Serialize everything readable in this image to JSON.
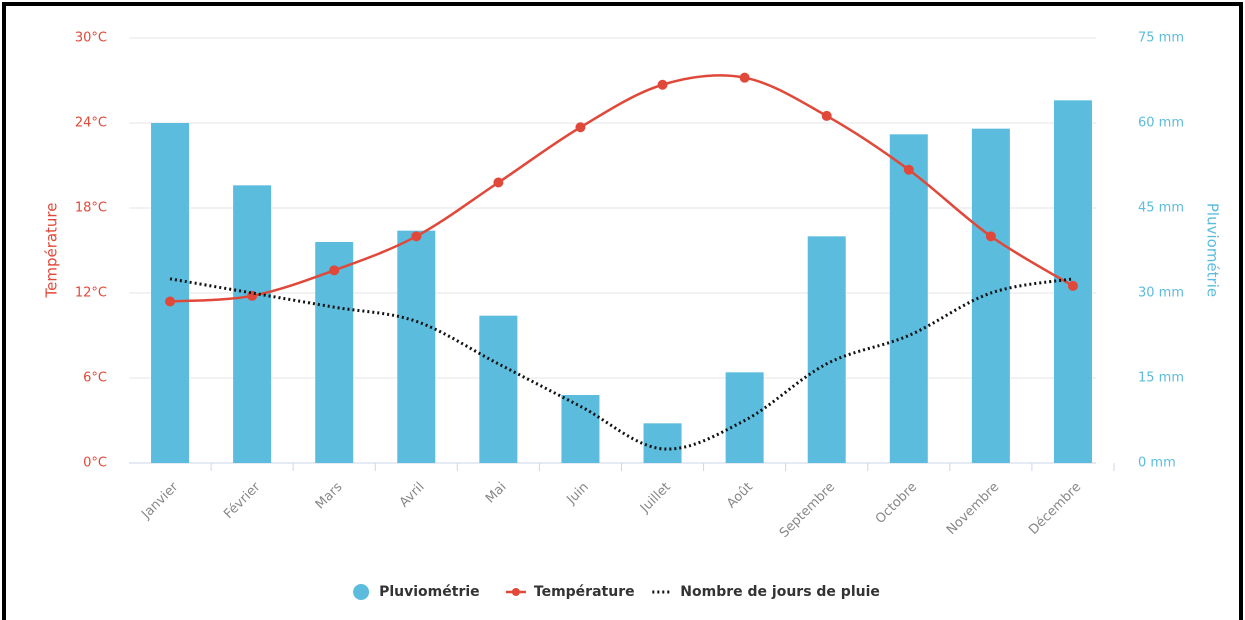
{
  "chart_data": {
    "type": "combo",
    "categories": [
      "Janvier",
      "Février",
      "Mars",
      "Avril",
      "Mai",
      "Juin",
      "Juillet",
      "Août",
      "Septembre",
      "Octobre",
      "Novembre",
      "Décembre"
    ],
    "y_label": "Température",
    "y2_label": "Pluviométrie",
    "ylim": [
      0,
      30
    ],
    "yticks": [
      {
        "value": 0,
        "label": "0°C"
      },
      {
        "value": 6,
        "label": "6°C"
      },
      {
        "value": 12,
        "label": "12°C"
      },
      {
        "value": 18,
        "label": "18°C"
      },
      {
        "value": 24,
        "label": "24°C"
      },
      {
        "value": 30,
        "label": "30°C"
      }
    ],
    "y2lim": [
      0,
      75
    ],
    "y2ticks": [
      {
        "value": 0,
        "label": "0 mm"
      },
      {
        "value": 15,
        "label": "15 mm"
      },
      {
        "value": 30,
        "label": "30 mm"
      },
      {
        "value": 45,
        "label": "45 mm"
      },
      {
        "value": 60,
        "label": "60 mm"
      },
      {
        "value": 75,
        "label": "75 mm"
      }
    ],
    "grid": true,
    "legend": "bottom",
    "series": [
      {
        "name": "Pluviométrie",
        "type": "bar",
        "axis": "y2",
        "color": "#5bbcdd",
        "values": [
          60,
          49,
          39,
          41,
          26,
          12,
          7,
          16,
          40,
          58,
          59,
          64
        ]
      },
      {
        "name": "Température",
        "type": "line",
        "axis": "y",
        "color": "#e0493a",
        "markers": true,
        "values": [
          11.4,
          11.8,
          13.6,
          16,
          19.8,
          23.7,
          26.7,
          27.2,
          24.5,
          20.7,
          16,
          12.5
        ]
      },
      {
        "name": "Nombre de jours de pluie",
        "type": "line",
        "axis": "y",
        "color": "#111111",
        "style": "dotted",
        "values": [
          13,
          12,
          11,
          10,
          7,
          4,
          1,
          3,
          7,
          9,
          12,
          13
        ]
      }
    ]
  }
}
